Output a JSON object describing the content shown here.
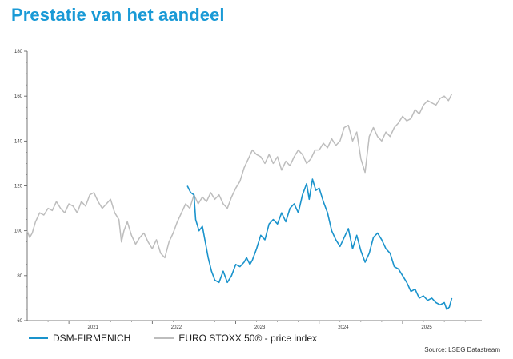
{
  "title": "Prestatie van het aandeel",
  "source": "Source: LSEG Datastream",
  "colors": {
    "title": "#1a9ad6",
    "dsm": "#1a93cc",
    "stoxx": "#bdbdbd",
    "axis": "#555555"
  },
  "chart_data": {
    "type": "line",
    "title": "Prestatie van het aandeel",
    "xlabel": "",
    "ylabel": "",
    "ylim": [
      60,
      180
    ],
    "yticks": [
      60,
      80,
      100,
      120,
      140,
      160,
      180
    ],
    "xlim": [
      2020.5,
      2025.95
    ],
    "xtick_labels": [
      "2021",
      "2022",
      "2023",
      "2024",
      "2025"
    ],
    "grid": false,
    "legend_position": "bottom-left",
    "series": [
      {
        "name": "DSM-FIRMENICH",
        "points": [
          [
            2022.42,
            120
          ],
          [
            2022.46,
            117
          ],
          [
            2022.5,
            116
          ],
          [
            2022.52,
            105
          ],
          [
            2022.56,
            100
          ],
          [
            2022.6,
            102
          ],
          [
            2022.63,
            96
          ],
          [
            2022.67,
            88
          ],
          [
            2022.71,
            82
          ],
          [
            2022.75,
            78
          ],
          [
            2022.8,
            77
          ],
          [
            2022.85,
            82
          ],
          [
            2022.9,
            77
          ],
          [
            2022.95,
            80
          ],
          [
            2023.0,
            85
          ],
          [
            2023.05,
            84
          ],
          [
            2023.1,
            86
          ],
          [
            2023.13,
            88
          ],
          [
            2023.17,
            85
          ],
          [
            2023.2,
            87
          ],
          [
            2023.25,
            92
          ],
          [
            2023.3,
            98
          ],
          [
            2023.35,
            96
          ],
          [
            2023.4,
            103
          ],
          [
            2023.45,
            105
          ],
          [
            2023.5,
            103
          ],
          [
            2023.55,
            108
          ],
          [
            2023.6,
            104
          ],
          [
            2023.65,
            110
          ],
          [
            2023.7,
            112
          ],
          [
            2023.75,
            108
          ],
          [
            2023.8,
            116
          ],
          [
            2023.85,
            121
          ],
          [
            2023.88,
            114
          ],
          [
            2023.92,
            123
          ],
          [
            2023.96,
            118
          ],
          [
            2024.0,
            119
          ],
          [
            2024.05,
            113
          ],
          [
            2024.1,
            108
          ],
          [
            2024.15,
            100
          ],
          [
            2024.2,
            96
          ],
          [
            2024.25,
            93
          ],
          [
            2024.3,
            97
          ],
          [
            2024.35,
            101
          ],
          [
            2024.4,
            92
          ],
          [
            2024.45,
            98
          ],
          [
            2024.5,
            91
          ],
          [
            2024.55,
            86
          ],
          [
            2024.6,
            90
          ],
          [
            2024.65,
            97
          ],
          [
            2024.7,
            99
          ],
          [
            2024.75,
            96
          ],
          [
            2024.8,
            92
          ],
          [
            2024.85,
            90
          ],
          [
            2024.9,
            84
          ],
          [
            2024.95,
            83
          ],
          [
            2025.0,
            80
          ],
          [
            2025.05,
            77
          ],
          [
            2025.1,
            73
          ],
          [
            2025.15,
            74
          ],
          [
            2025.2,
            70
          ],
          [
            2025.25,
            71
          ],
          [
            2025.3,
            69
          ],
          [
            2025.35,
            70
          ],
          [
            2025.4,
            68
          ],
          [
            2025.45,
            67
          ],
          [
            2025.5,
            68
          ],
          [
            2025.53,
            65
          ],
          [
            2025.56,
            66
          ],
          [
            2025.59,
            70
          ]
        ]
      },
      {
        "name": "EURO STOXX 50® - price index",
        "points": [
          [
            2020.5,
            100
          ],
          [
            2020.53,
            97
          ],
          [
            2020.56,
            99
          ],
          [
            2020.6,
            104
          ],
          [
            2020.65,
            108
          ],
          [
            2020.7,
            107
          ],
          [
            2020.75,
            110
          ],
          [
            2020.8,
            109
          ],
          [
            2020.85,
            113
          ],
          [
            2020.9,
            110
          ],
          [
            2020.95,
            108
          ],
          [
            2021.0,
            112
          ],
          [
            2021.05,
            111
          ],
          [
            2021.1,
            108
          ],
          [
            2021.15,
            113
          ],
          [
            2021.2,
            111
          ],
          [
            2021.25,
            116
          ],
          [
            2021.3,
            117
          ],
          [
            2021.35,
            113
          ],
          [
            2021.4,
            110
          ],
          [
            2021.45,
            112
          ],
          [
            2021.5,
            114
          ],
          [
            2021.55,
            108
          ],
          [
            2021.6,
            105
          ],
          [
            2021.63,
            95
          ],
          [
            2021.66,
            100
          ],
          [
            2021.7,
            104
          ],
          [
            2021.75,
            98
          ],
          [
            2021.8,
            94
          ],
          [
            2021.85,
            97
          ],
          [
            2021.9,
            99
          ],
          [
            2021.95,
            95
          ],
          [
            2022.0,
            92
          ],
          [
            2022.05,
            96
          ],
          [
            2022.1,
            90
          ],
          [
            2022.15,
            88
          ],
          [
            2022.2,
            95
          ],
          [
            2022.25,
            99
          ],
          [
            2022.3,
            104
          ],
          [
            2022.35,
            108
          ],
          [
            2022.4,
            112
          ],
          [
            2022.45,
            110
          ],
          [
            2022.5,
            116
          ],
          [
            2022.55,
            112
          ],
          [
            2022.6,
            115
          ],
          [
            2022.65,
            113
          ],
          [
            2022.7,
            117
          ],
          [
            2022.75,
            114
          ],
          [
            2022.8,
            116
          ],
          [
            2022.85,
            112
          ],
          [
            2022.9,
            110
          ],
          [
            2022.95,
            115
          ],
          [
            2023.0,
            119
          ],
          [
            2023.05,
            122
          ],
          [
            2023.1,
            128
          ],
          [
            2023.15,
            132
          ],
          [
            2023.2,
            136
          ],
          [
            2023.25,
            134
          ],
          [
            2023.3,
            133
          ],
          [
            2023.35,
            130
          ],
          [
            2023.4,
            134
          ],
          [
            2023.45,
            130
          ],
          [
            2023.5,
            133
          ],
          [
            2023.55,
            127
          ],
          [
            2023.6,
            131
          ],
          [
            2023.65,
            129
          ],
          [
            2023.7,
            133
          ],
          [
            2023.75,
            136
          ],
          [
            2023.8,
            134
          ],
          [
            2023.85,
            130
          ],
          [
            2023.9,
            132
          ],
          [
            2023.95,
            136
          ],
          [
            2024.0,
            136
          ],
          [
            2024.05,
            139
          ],
          [
            2024.1,
            137
          ],
          [
            2024.15,
            141
          ],
          [
            2024.2,
            138
          ],
          [
            2024.25,
            140
          ],
          [
            2024.3,
            146
          ],
          [
            2024.35,
            147
          ],
          [
            2024.4,
            140
          ],
          [
            2024.45,
            144
          ],
          [
            2024.5,
            132
          ],
          [
            2024.55,
            126
          ],
          [
            2024.6,
            142
          ],
          [
            2024.65,
            146
          ],
          [
            2024.7,
            142
          ],
          [
            2024.75,
            140
          ],
          [
            2024.8,
            144
          ],
          [
            2024.85,
            142
          ],
          [
            2024.9,
            146
          ],
          [
            2024.95,
            148
          ],
          [
            2025.0,
            151
          ],
          [
            2025.05,
            149
          ],
          [
            2025.1,
            150
          ],
          [
            2025.15,
            154
          ],
          [
            2025.2,
            152
          ],
          [
            2025.25,
            156
          ],
          [
            2025.3,
            158
          ],
          [
            2025.35,
            157
          ],
          [
            2025.4,
            156
          ],
          [
            2025.45,
            159
          ],
          [
            2025.5,
            160
          ],
          [
            2025.55,
            158
          ],
          [
            2025.59,
            161
          ]
        ]
      }
    ]
  }
}
